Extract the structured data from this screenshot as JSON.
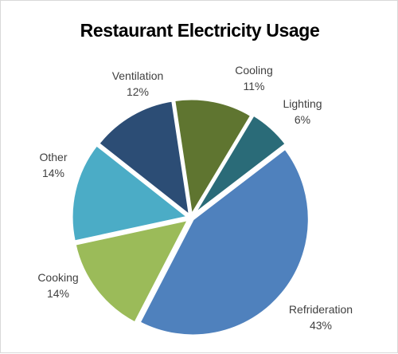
{
  "chart_data": {
    "type": "pie",
    "title": "Restaurant Electricity Usage",
    "legend": "none",
    "data_labels": "category-and-percent",
    "slices": [
      {
        "label": "Lighting",
        "value": 6,
        "display": "6%",
        "color": "#2a6b78"
      },
      {
        "label": "Refrideration",
        "value": 43,
        "display": "43%",
        "color": "#4f81bd"
      },
      {
        "label": "Cooking",
        "value": 14,
        "display": "14%",
        "color": "#9bbb59"
      },
      {
        "label": "Other",
        "value": 14,
        "display": "14%",
        "color": "#4bacc6"
      },
      {
        "label": "Ventilation",
        "value": 12,
        "display": "12%",
        "color": "#2c4d75"
      },
      {
        "label": "Cooling",
        "value": 11,
        "display": "11%",
        "color": "#5f7530"
      }
    ]
  }
}
